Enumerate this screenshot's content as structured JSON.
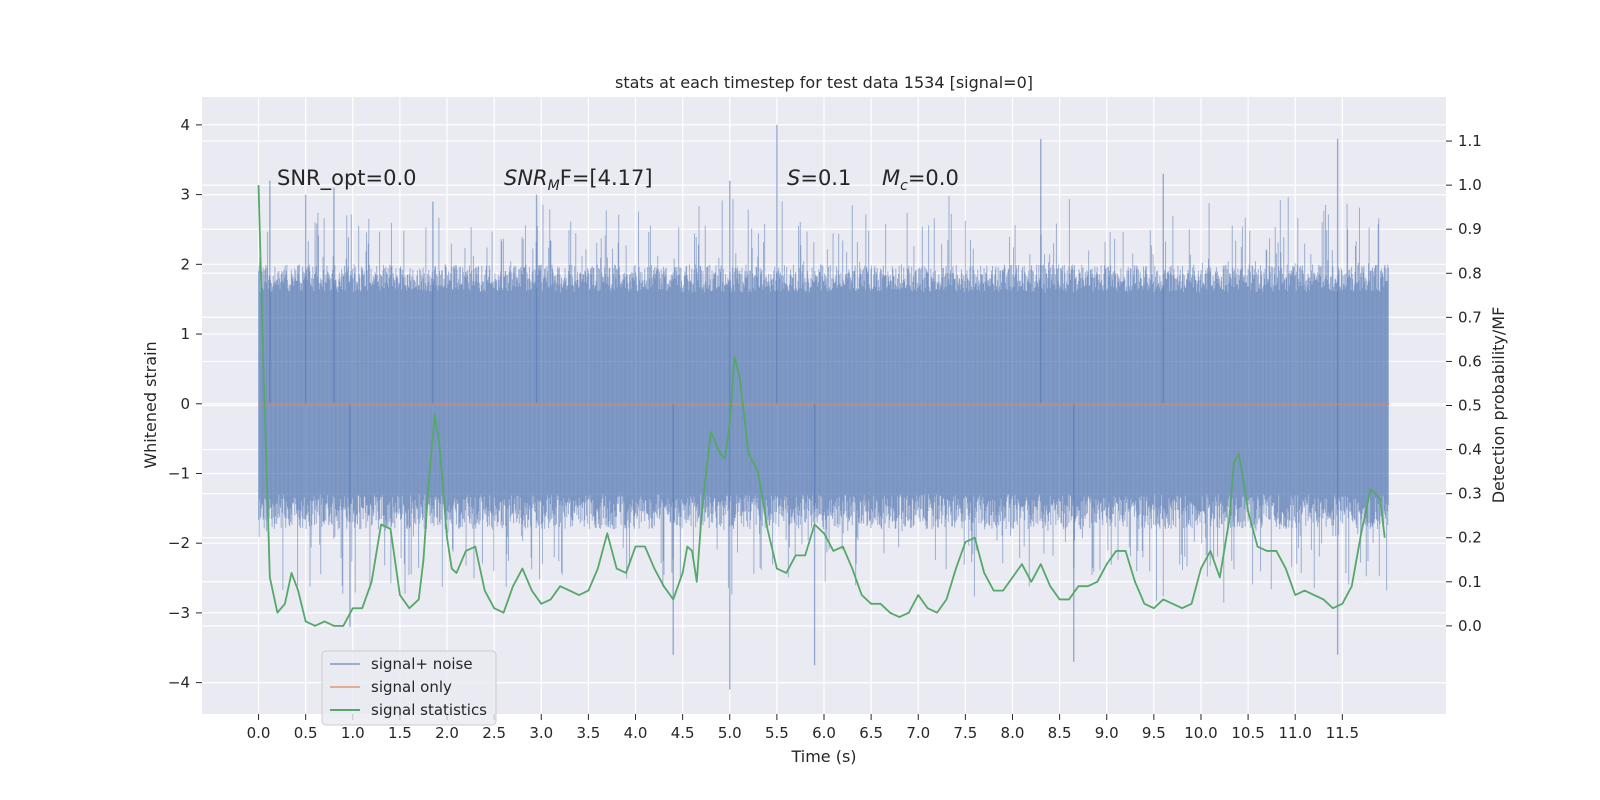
{
  "chart_data": {
    "type": "line",
    "title": "stats at each timestep for test data 1534 [signal=0]",
    "xlabel": "Time (s)",
    "ylabel_left": "Whitened strain",
    "ylabel_right": "Detection probability/MF",
    "xlim": [
      -0.6,
      12.6
    ],
    "ylim_left": [
      -4.45,
      4.4
    ],
    "ylim_right": [
      -0.2,
      1.2
    ],
    "x_ticks": [
      0.0,
      0.5,
      1.0,
      1.5,
      2.0,
      2.5,
      3.0,
      3.5,
      4.0,
      4.5,
      5.0,
      5.5,
      6.0,
      6.5,
      7.0,
      7.5,
      8.0,
      8.5,
      9.0,
      9.5,
      10.0,
      10.5,
      11.0,
      11.5
    ],
    "x_tick_labels": [
      "0.0",
      "0.5",
      "1.0",
      "1.5",
      "2.0",
      "2.5",
      "3.0",
      "3.5",
      "4.0",
      "4.5",
      "5.0",
      "5.5",
      "6.0",
      "6.5",
      "7.0",
      "7.5",
      "8.0",
      "8.5",
      "9.0",
      "9.5",
      "10.0",
      "10.5",
      "11.0",
      "11.5"
    ],
    "y_left_ticks": [
      4,
      3,
      2,
      1,
      0,
      -1,
      -2,
      -3,
      -4
    ],
    "y_left_tick_labels": [
      "4",
      "3",
      "2",
      "1",
      "0",
      "−1",
      "−2",
      "−3",
      "−4"
    ],
    "y_right_ticks": [
      1.1,
      1.0,
      0.9,
      0.8,
      0.7,
      0.6,
      0.5,
      0.4,
      0.3,
      0.2,
      0.1,
      0.0
    ],
    "y_right_tick_labels": [
      "1.1",
      "1.0",
      "0.9",
      "0.8",
      "0.7",
      "0.6",
      "0.5",
      "0.4",
      "0.3",
      "0.2",
      "0.1",
      "0.0"
    ],
    "grid": true,
    "legend_position": "lower-left",
    "annotations": {
      "snr_opt": "SNR_opt=0.0",
      "snr_mf_prefix": "SNR",
      "snr_mf_sub": "M",
      "snr_mf_suffix": "F=[4.17]",
      "s_label": "S",
      "s_value": "=0.1",
      "mc_label": "M",
      "mc_sub": "c",
      "mc_value": "=0.0"
    },
    "series": [
      {
        "name": "signal+ noise",
        "axis": "left",
        "color": "#4c72b0",
        "x_start": 0.0,
        "x_end": 11.99,
        "envelope_typical": [
          -1.8,
          2.0
        ],
        "peaks": [
          [
            0.12,
            3.2
          ],
          [
            0.5,
            3.0
          ],
          [
            0.8,
            3.1
          ],
          [
            1.85,
            2.9
          ],
          [
            2.95,
            3.0
          ],
          [
            5.0,
            3.2
          ],
          [
            5.5,
            4.0
          ],
          [
            8.3,
            3.8
          ],
          [
            9.6,
            3.3
          ],
          [
            11.45,
            3.8
          ],
          [
            0.97,
            -3.2
          ],
          [
            5.0,
            -4.1
          ],
          [
            5.9,
            -3.75
          ],
          [
            8.65,
            -3.7
          ],
          [
            11.45,
            -3.6
          ],
          [
            4.4,
            -3.6
          ]
        ]
      },
      {
        "name": "signal only",
        "axis": "left",
        "color": "#dd8452",
        "x": [
          0.0,
          12.0
        ],
        "y": [
          0.0,
          0.0
        ]
      },
      {
        "name": "signal statistics",
        "axis": "right",
        "color": "#55a868",
        "x": [
          0.0,
          0.05,
          0.12,
          0.2,
          0.28,
          0.35,
          0.42,
          0.5,
          0.6,
          0.7,
          0.8,
          0.9,
          1.0,
          1.1,
          1.2,
          1.3,
          1.4,
          1.5,
          1.6,
          1.7,
          1.75,
          1.8,
          1.87,
          1.92,
          2.0,
          2.05,
          2.1,
          2.2,
          2.3,
          2.4,
          2.5,
          2.6,
          2.7,
          2.8,
          2.9,
          3.0,
          3.1,
          3.2,
          3.3,
          3.4,
          3.5,
          3.6,
          3.7,
          3.8,
          3.9,
          4.0,
          4.1,
          4.2,
          4.3,
          4.4,
          4.5,
          4.55,
          4.6,
          4.65,
          4.7,
          4.75,
          4.8,
          4.9,
          4.95,
          5.0,
          5.05,
          5.1,
          5.2,
          5.3,
          5.4,
          5.5,
          5.6,
          5.7,
          5.8,
          5.9,
          6.0,
          6.1,
          6.2,
          6.3,
          6.4,
          6.5,
          6.6,
          6.7,
          6.8,
          6.9,
          7.0,
          7.1,
          7.2,
          7.3,
          7.4,
          7.5,
          7.6,
          7.7,
          7.8,
          7.9,
          8.0,
          8.1,
          8.2,
          8.3,
          8.4,
          8.5,
          8.6,
          8.7,
          8.8,
          8.9,
          9.0,
          9.1,
          9.2,
          9.3,
          9.4,
          9.5,
          9.6,
          9.7,
          9.8,
          9.9,
          10.0,
          10.1,
          10.2,
          10.3,
          10.35,
          10.4,
          10.45,
          10.5,
          10.6,
          10.7,
          10.8,
          10.9,
          11.0,
          11.1,
          11.2,
          11.3,
          11.4,
          11.5,
          11.6,
          11.7,
          11.8,
          11.9,
          11.95
        ],
        "y": [
          1.0,
          0.6,
          0.11,
          0.03,
          0.05,
          0.12,
          0.08,
          0.01,
          0.0,
          0.01,
          0.0,
          0.0,
          0.04,
          0.04,
          0.1,
          0.23,
          0.22,
          0.07,
          0.04,
          0.06,
          0.15,
          0.31,
          0.48,
          0.41,
          0.2,
          0.13,
          0.12,
          0.17,
          0.18,
          0.08,
          0.04,
          0.03,
          0.09,
          0.13,
          0.08,
          0.05,
          0.06,
          0.09,
          0.08,
          0.07,
          0.08,
          0.13,
          0.21,
          0.13,
          0.12,
          0.18,
          0.18,
          0.13,
          0.09,
          0.06,
          0.12,
          0.18,
          0.17,
          0.1,
          0.25,
          0.35,
          0.44,
          0.39,
          0.38,
          0.46,
          0.61,
          0.57,
          0.39,
          0.35,
          0.22,
          0.13,
          0.12,
          0.16,
          0.16,
          0.23,
          0.21,
          0.17,
          0.18,
          0.13,
          0.07,
          0.05,
          0.05,
          0.03,
          0.02,
          0.03,
          0.07,
          0.04,
          0.03,
          0.06,
          0.13,
          0.19,
          0.2,
          0.12,
          0.08,
          0.08,
          0.11,
          0.14,
          0.1,
          0.14,
          0.09,
          0.06,
          0.06,
          0.09,
          0.09,
          0.1,
          0.14,
          0.17,
          0.17,
          0.1,
          0.05,
          0.04,
          0.06,
          0.05,
          0.04,
          0.05,
          0.13,
          0.17,
          0.11,
          0.24,
          0.37,
          0.39,
          0.33,
          0.26,
          0.18,
          0.17,
          0.17,
          0.13,
          0.07,
          0.08,
          0.07,
          0.06,
          0.04,
          0.05,
          0.09,
          0.21,
          0.31,
          0.29,
          0.2
        ]
      }
    ]
  }
}
